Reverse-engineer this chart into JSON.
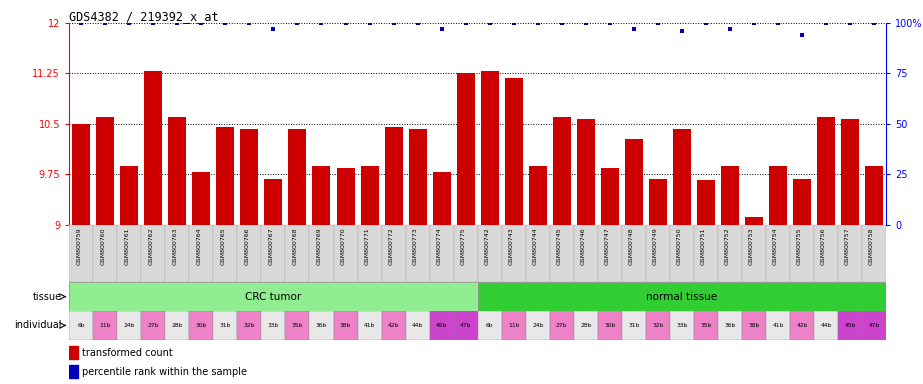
{
  "title": "GDS4382 / 219392_x_at",
  "samples": [
    "GSM800759",
    "GSM800760",
    "GSM800761",
    "GSM800762",
    "GSM800763",
    "GSM800764",
    "GSM800765",
    "GSM800766",
    "GSM800767",
    "GSM800768",
    "GSM800769",
    "GSM800770",
    "GSM800771",
    "GSM800772",
    "GSM800773",
    "GSM800774",
    "GSM800775",
    "GSM800742",
    "GSM800743",
    "GSM800744",
    "GSM800745",
    "GSM800746",
    "GSM800747",
    "GSM800748",
    "GSM800749",
    "GSM800750",
    "GSM800751",
    "GSM800752",
    "GSM800753",
    "GSM800754",
    "GSM800755",
    "GSM800756",
    "GSM800757",
    "GSM800758"
  ],
  "bar_values": [
    10.5,
    10.6,
    9.87,
    11.28,
    10.6,
    9.78,
    10.46,
    10.43,
    9.68,
    10.42,
    9.88,
    9.85,
    9.87,
    10.46,
    10.43,
    9.78,
    11.25,
    11.28,
    11.18,
    9.88,
    10.6,
    10.57,
    9.84,
    10.28,
    9.68,
    10.42,
    9.67,
    9.88,
    9.12,
    9.87,
    9.68,
    10.6,
    10.57,
    9.87
  ],
  "percentile_values_pct": [
    100,
    100,
    100,
    100,
    100,
    100,
    100,
    100,
    97,
    100,
    100,
    100,
    100,
    100,
    100,
    97,
    100,
    100,
    100,
    100,
    100,
    100,
    100,
    97,
    100,
    96,
    100,
    97,
    100,
    100,
    94,
    100,
    100,
    100
  ],
  "ylim_left": [
    9.0,
    12.0
  ],
  "ylim_right": [
    0,
    100
  ],
  "yticks_left": [
    9.0,
    9.75,
    10.5,
    11.25,
    12.0
  ],
  "yticks_right": [
    0,
    25,
    50,
    75,
    100
  ],
  "ytick_labels_left": [
    "9",
    "9.75",
    "10.5",
    "11.25",
    "12"
  ],
  "ytick_labels_right": [
    "0",
    "25",
    "50",
    "75",
    "100%"
  ],
  "bar_color": "#CC0000",
  "dot_color": "#0000BB",
  "crc_color": "#90EE90",
  "normal_color": "#32CD32",
  "ind_colors_crc": [
    "#e8e8e8",
    "#EE82C8",
    "#e8e8e8",
    "#EE82C8",
    "#e8e8e8",
    "#EE82C8",
    "#e8e8e8",
    "#EE82C8",
    "#e8e8e8",
    "#EE82C8",
    "#e8e8e8",
    "#EE82C8",
    "#e8e8e8",
    "#EE82C8",
    "#e8e8e8",
    "#CC44CC",
    "#CC44CC"
  ],
  "ind_colors_norm": [
    "#e8e8e8",
    "#EE82C8",
    "#e8e8e8",
    "#EE82C8",
    "#e8e8e8",
    "#EE82C8",
    "#e8e8e8",
    "#EE82C8",
    "#e8e8e8",
    "#EE82C8",
    "#e8e8e8",
    "#EE82C8",
    "#e8e8e8",
    "#EE82C8",
    "#e8e8e8",
    "#CC44CC",
    "#CC44CC"
  ],
  "ind_labels_crc": [
    "6b",
    "11b",
    "24b",
    "27b",
    "28b",
    "30b",
    "31b",
    "32b",
    "33b",
    "35b",
    "36b",
    "38b",
    "41b",
    "42b",
    "44b",
    "45b",
    "47b"
  ],
  "ind_labels_norm": [
    "6b",
    "11b",
    "24b",
    "27b",
    "28b",
    "30b",
    "31b",
    "32b",
    "33b",
    "35b",
    "36b",
    "38b",
    "41b",
    "42b",
    "44b",
    "45b",
    "47b"
  ]
}
